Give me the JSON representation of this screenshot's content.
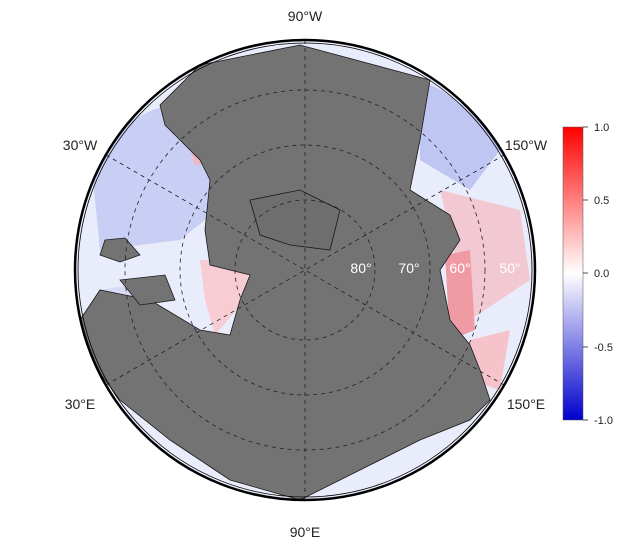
{
  "map": {
    "projection": "north-polar-stereographic",
    "land_color": "#737373",
    "ocean_field_colors": {
      "negative": "#0000ff",
      "zero": "#ffffff",
      "positive": "#ff0000"
    },
    "longitude_labels": {
      "top": "90°W",
      "bottom": "90°E",
      "upper_left": "30°W",
      "upper_right": "150°W",
      "lower_left": "30°E",
      "lower_right": "150°E"
    },
    "latitude_labels": [
      "80°",
      "70°",
      "60°",
      "50°"
    ]
  },
  "colorbar": {
    "min": -1.0,
    "max": 1.0,
    "ticks": [
      "1.0",
      "0.5",
      "0.0",
      "-0.5",
      "-1.0"
    ]
  }
}
